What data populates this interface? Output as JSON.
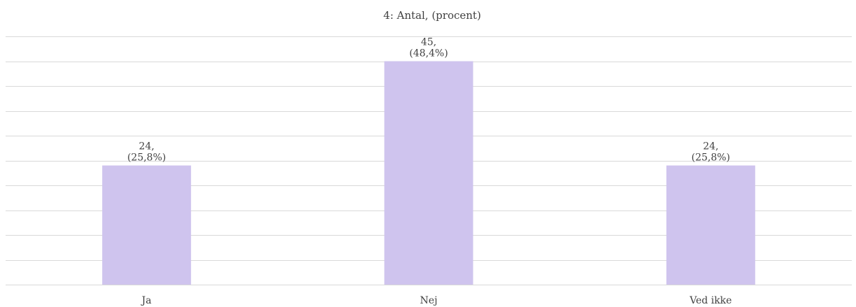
{
  "chart_data": {
    "type": "bar",
    "subtitle": "4: Antal, (procent)",
    "categories": [
      "Ja",
      "Nej",
      "Ved ikke"
    ],
    "values": [
      24,
      45,
      24
    ],
    "data_labels": [
      [
        "24,",
        "(25,8%)"
      ],
      [
        "45,",
        "(48,4%)"
      ],
      [
        "24,",
        "(25,8%)"
      ]
    ],
    "ylim": [
      0,
      50
    ],
    "grid": true,
    "bar_color": "#cfc4ee",
    "grid_color": "#d9d9d9",
    "text_color": "#404040"
  }
}
